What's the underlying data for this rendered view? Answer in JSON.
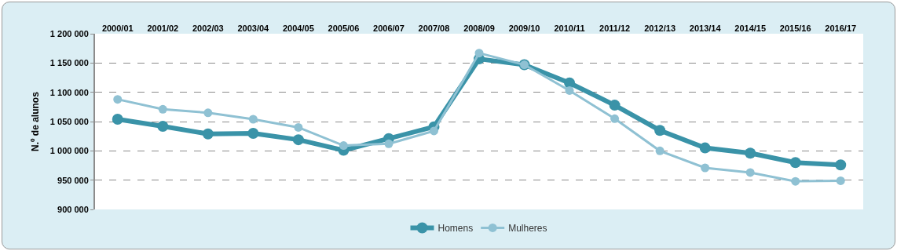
{
  "chart_data": {
    "type": "line",
    "ylabel": "N.º de alunos",
    "categories": [
      "2000/01",
      "2001/02",
      "2002/03",
      "2003/04",
      "2004/05",
      "2005/06",
      "2006/07",
      "2007/08",
      "2008/09",
      "2009/10",
      "2010/11",
      "2011/12",
      "2012/13",
      "2013/14",
      "2014/15",
      "2015/16",
      "2016/17"
    ],
    "series": [
      {
        "name": "Homens",
        "color": "#3a93a8",
        "values": [
          1054000,
          1042000,
          1029000,
          1030000,
          1019000,
          1001000,
          1021000,
          1041000,
          1157000,
          1147000,
          1116000,
          1078000,
          1035000,
          1005000,
          996000,
          980000,
          976000
        ]
      },
      {
        "name": "Mulheres",
        "color": "#8fc1d3",
        "values": [
          1088000,
          1071000,
          1065000,
          1054000,
          1040000,
          1009000,
          1012000,
          1034000,
          1167000,
          1147000,
          1103000,
          1055000,
          1000000,
          971000,
          963000,
          948000,
          949000
        ]
      }
    ],
    "ylim": [
      900000,
      1200000
    ],
    "yticks": [
      {
        "value": 900000,
        "label": "900 000"
      },
      {
        "value": 950000,
        "label": "950 000"
      },
      {
        "value": 1000000,
        "label": "1 000 000"
      },
      {
        "value": 1050000,
        "label": "1 050 000"
      },
      {
        "value": 1100000,
        "label": "1 100 000"
      },
      {
        "value": 1150000,
        "label": "1 150 000"
      },
      {
        "value": 1200000,
        "label": "1 200 000"
      }
    ],
    "grid": "y",
    "legend": "bottom",
    "marker": "circle",
    "line_style": "solid"
  }
}
